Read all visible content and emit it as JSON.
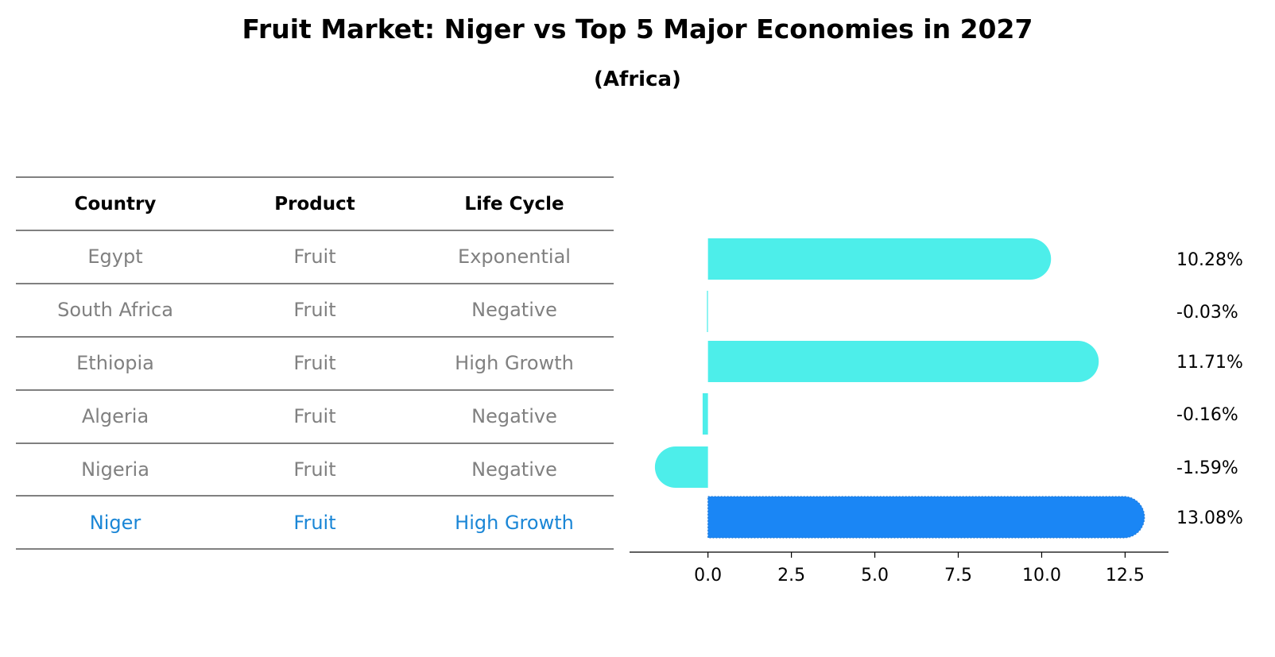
{
  "chart_data": {
    "type": "bar",
    "orientation": "horizontal",
    "title": "Fruit Market: Niger vs Top 5 Major Economies in 2027",
    "subtitle": "(Africa)",
    "table": {
      "headers": [
        "Country",
        "Product",
        "Life Cycle"
      ],
      "rows": [
        [
          "Egypt",
          "Fruit",
          "Exponential"
        ],
        [
          "South Africa",
          "Fruit",
          "Negative"
        ],
        [
          "Ethiopia",
          "Fruit",
          "High Growth"
        ],
        [
          "Algeria",
          "Fruit",
          "Negative"
        ],
        [
          "Nigeria",
          "Fruit",
          "Negative"
        ],
        [
          "Niger",
          "Fruit",
          "High Growth"
        ]
      ],
      "highlight_row": 5
    },
    "categories": [
      "Egypt",
      "South Africa",
      "Ethiopia",
      "Algeria",
      "Nigeria",
      "Niger"
    ],
    "values": [
      10.28,
      -0.03,
      11.71,
      -0.16,
      -1.59,
      13.08
    ],
    "value_labels": [
      "10.28%",
      "-0.03%",
      "11.71%",
      "-0.16%",
      "-1.59%",
      "13.08%"
    ],
    "highlight_index": 5,
    "xlim": [
      -2.35,
      13.8
    ],
    "xticks": [
      0.0,
      2.5,
      5.0,
      7.5,
      10.0,
      12.5
    ],
    "xtick_labels": [
      "0.0",
      "2.5",
      "5.0",
      "7.5",
      "10.0",
      "12.5"
    ],
    "xlabel": "",
    "ylabel": "",
    "grid": false,
    "colors": {
      "bar": "#4DEEEA",
      "highlight_bar": "#1A86F5",
      "table_text": "#808080",
      "table_highlight_text": "#1A86D6",
      "header_text": "#000000",
      "axis": "#000000"
    }
  }
}
